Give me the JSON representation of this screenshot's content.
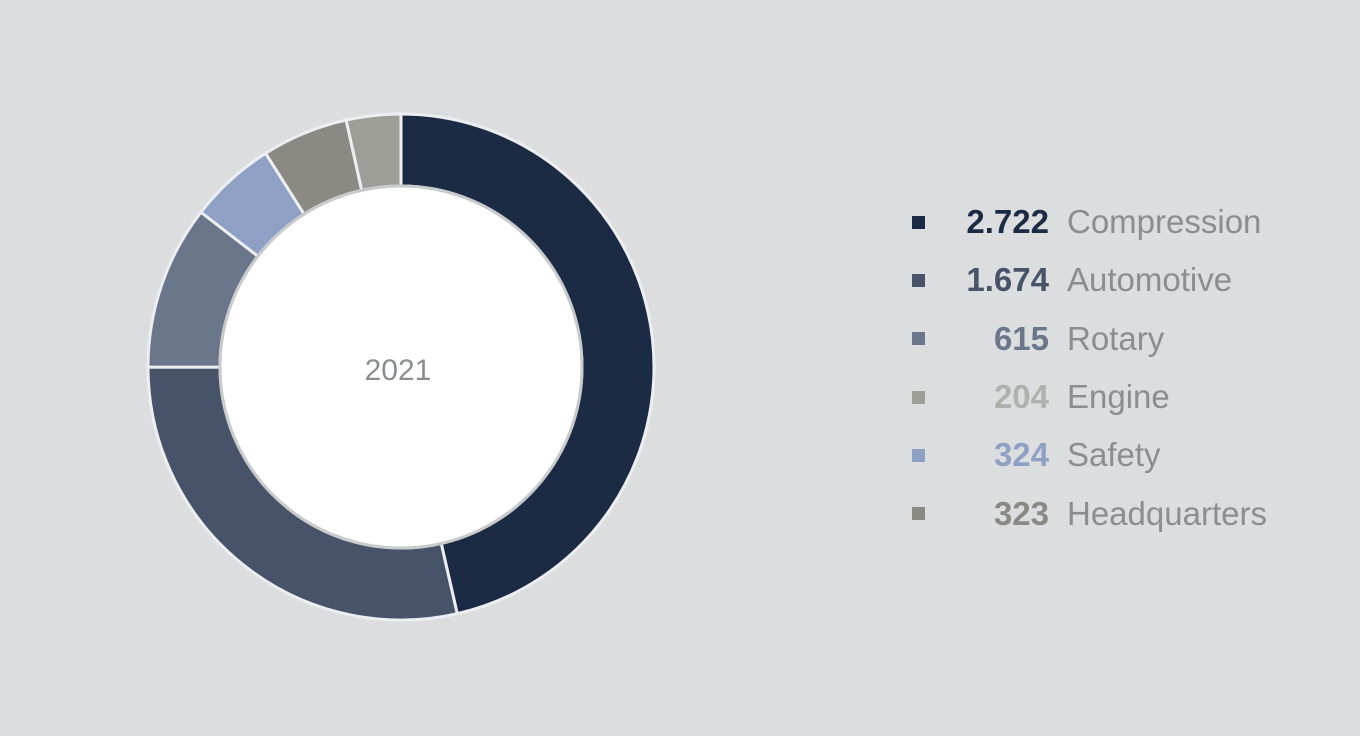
{
  "chart_data": {
    "type": "pie",
    "donut": true,
    "center_label": "2021",
    "start": "top",
    "direction": "clockwise",
    "slices": [
      {
        "label": "Compression",
        "value": 2722,
        "display": "2.722",
        "color": "#1c2b44"
      },
      {
        "label": "Automotive",
        "value": 1674,
        "display": "1.674",
        "color": "#475368"
      },
      {
        "label": "Rotary",
        "value": 615,
        "display": "615",
        "color": "#6a778b"
      },
      {
        "label": "Safety",
        "value": 324,
        "display": "324",
        "color": "#8ea1c4"
      },
      {
        "label": "Headquarters",
        "value": 323,
        "display": "323",
        "color": "#8a8984"
      },
      {
        "label": "Engine",
        "value": 204,
        "display": "204",
        "color": "#9e9e99"
      }
    ],
    "legend_order": [
      "Compression",
      "Automotive",
      "Rotary",
      "Engine",
      "Safety",
      "Headquarters"
    ],
    "legend_value_colors": {
      "Engine": "#b0b0ad"
    },
    "legend_placement": "right"
  }
}
